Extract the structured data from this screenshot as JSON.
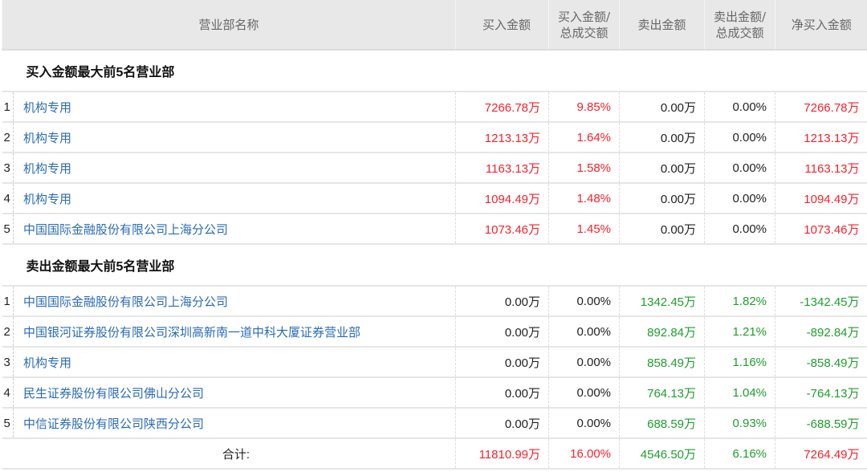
{
  "headers": [
    "营业部名称",
    "买入金额",
    "买入金额/\n总成交额",
    "卖出金额",
    "卖出金额/\n总成交额",
    "净买入金额"
  ],
  "buy_section": {
    "title": "买入金额最大前5名营业部",
    "rows": [
      {
        "idx": "1",
        "name": "机构专用",
        "buy": "7266.78万",
        "buy_pct": "9.85%",
        "sell": "0.00万",
        "sell_pct": "0.00%",
        "net": "7266.78万"
      },
      {
        "idx": "2",
        "name": "机构专用",
        "buy": "1213.13万",
        "buy_pct": "1.64%",
        "sell": "0.00万",
        "sell_pct": "0.00%",
        "net": "1213.13万"
      },
      {
        "idx": "3",
        "name": "机构专用",
        "buy": "1163.13万",
        "buy_pct": "1.58%",
        "sell": "0.00万",
        "sell_pct": "0.00%",
        "net": "1163.13万"
      },
      {
        "idx": "4",
        "name": "机构专用",
        "buy": "1094.49万",
        "buy_pct": "1.48%",
        "sell": "0.00万",
        "sell_pct": "0.00%",
        "net": "1094.49万"
      },
      {
        "idx": "5",
        "name": "中国国际金融股份有限公司上海分公司",
        "buy": "1073.46万",
        "buy_pct": "1.45%",
        "sell": "0.00万",
        "sell_pct": "0.00%",
        "net": "1073.46万"
      }
    ]
  },
  "sell_section": {
    "title": "卖出金额最大前5名营业部",
    "rows": [
      {
        "idx": "1",
        "name": "中国国际金融股份有限公司上海分公司",
        "buy": "0.00万",
        "buy_pct": "0.00%",
        "sell": "1342.45万",
        "sell_pct": "1.82%",
        "net": "-1342.45万"
      },
      {
        "idx": "2",
        "name": "中国银河证券股份有限公司深圳高新南一道中科大厦证券营业部",
        "buy": "0.00万",
        "buy_pct": "0.00%",
        "sell": "892.84万",
        "sell_pct": "1.21%",
        "net": "-892.84万"
      },
      {
        "idx": "3",
        "name": "机构专用",
        "buy": "0.00万",
        "buy_pct": "0.00%",
        "sell": "858.49万",
        "sell_pct": "1.16%",
        "net": "-858.49万"
      },
      {
        "idx": "4",
        "name": "民生证券股份有限公司佛山分公司",
        "buy": "0.00万",
        "buy_pct": "0.00%",
        "sell": "764.13万",
        "sell_pct": "1.04%",
        "net": "-764.13万"
      },
      {
        "idx": "5",
        "name": "中信证券股份有限公司陕西分公司",
        "buy": "0.00万",
        "buy_pct": "0.00%",
        "sell": "688.59万",
        "sell_pct": "0.93%",
        "net": "-688.59万"
      }
    ]
  },
  "total": {
    "label": "合计:",
    "buy": "11810.99万",
    "buy_pct": "16.00%",
    "sell": "4546.50万",
    "sell_pct": "6.16%",
    "net": "7264.49万"
  },
  "colors": {
    "buy": "#f5222d",
    "sell": "#1f9e2c",
    "link": "#2a6bb5"
  }
}
